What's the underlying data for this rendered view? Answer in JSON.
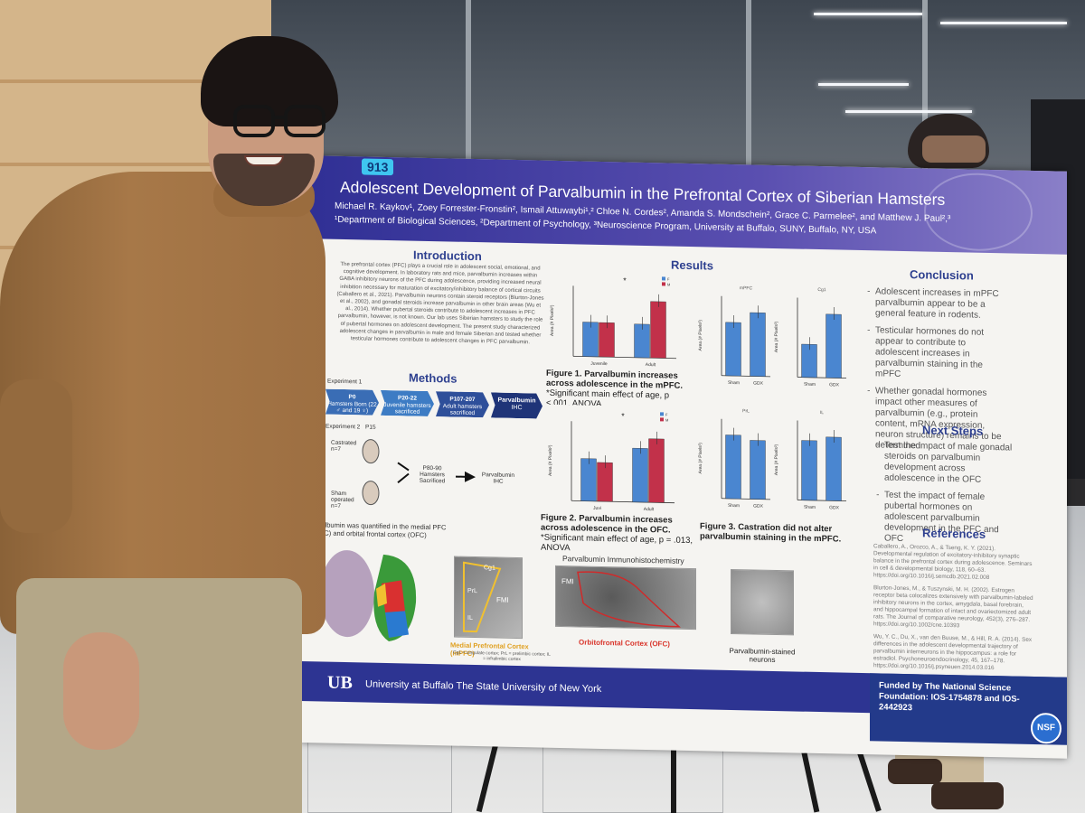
{
  "poster": {
    "number": "913",
    "title": "Adolescent Development of Parvalbumin in the Prefrontal Cortex of Siberian Hamsters",
    "authors": "Michael R. Kaykov¹, Zoey Forrester-Fronstin², Ismail Attuwaybi¹,² Chloe N. Cordes², Amanda S. Mondschein², Grace C. Parmelee², and Matthew J. Paul²,³",
    "affiliations": "¹Department of Biological Sciences, ²Department of Psychology, ³Neuroscience Program, University at Buffalo, SUNY, Buffalo, NY, USA",
    "introduction": {
      "heading": "Introduction",
      "text": "The prefrontal cortex (PFC) plays a crucial role in adolescent social, emotional, and cognitive development. In laboratory rats and mice, parvalbumin increases within GABA inhibitory neurons of the PFC during adolescence, providing increased neural inhibition necessary for maturation of excitatory/inhibitory balance of cortical circuits (Caballero et al., 2021). Parvalbumin neurons contain steroid receptors (Blurton-Jones et al., 2002), and gonadal steroids increase parvalbumin in other brain areas (Wu et al., 2014). Whether pubertal steroids contribute to adolescent increases in PFC parvalbumin, however, is not known. Our lab uses Siberian hamsters to study the role of pubertal hormones on adolescent development. The present study characterized adolescent changes in parvalbumin in male and female Siberian and tested whether testicular hormones contribute to adolescent changes in PFC parvalbumin."
    },
    "methods": {
      "heading": "Methods",
      "experiment1": "Experiment 1",
      "steps": [
        {
          "title": "P0",
          "text": "Hamsters Born (22 ♂ and 19 ♀)"
        },
        {
          "title": "P20-22",
          "text": "Juvenile hamsters sacrificed"
        },
        {
          "title": "P107-207",
          "text": "Adult hamsters sacrificed"
        },
        {
          "title": "Parvalbumin",
          "text": "IHC"
        }
      ],
      "experiment2": "Experiment 2",
      "p15": "P15",
      "castrated": "Castrated n=7",
      "sham": "Sham operated n=7",
      "p80": "P80-90 Hamsters Sacrificed",
      "ihc": "Parvalbumin IHC",
      "quantified": "Parvalbumin was quantified in the medial PFC (mPFC) and orbital frontal cortex (OFC)",
      "mpfc_label": "Medial Prefrontal Cortex (mPFC)",
      "mpfc_note": "Cg1 = cingulate cortex; PrL = prelimbic cortex; IL = infralimbic cortex",
      "cg1": "Cg1",
      "prl": "PrL",
      "il": "IL",
      "fmi": "FMI"
    },
    "results": {
      "heading": "Results",
      "fig1_caption_bold": "Figure 1. Parvalbumin increases across adolescence in the mPFC.",
      "fig1_caption": "*Significant main effect of age, p <.001, ANOVA",
      "fig2_caption_bold": "Figure 2. Parvalbumin increases across adolescence in the OFC.",
      "fig2_caption": "*Significant main effect of age, p = .013, ANOVA",
      "fig3_caption": "Figure 3. Castration did not alter parvalbumin staining in the mPFC.",
      "ihc_title": "Parvalbumin Immunohistochemistry",
      "ofc_label": "Orbitofrontal Cortex (OFC)",
      "neurons_label": "Parvalbumin-stained neurons",
      "fmi": "FMI"
    },
    "conclusion": {
      "heading": "Conclusion",
      "items": [
        "Adolescent increases in mPFC parvalbumin appear to be a general feature in rodents.",
        "Testicular hormones do not appear to contribute to adolescent increases in parvalbumin staining in the mPFC",
        "Whether gonadal hormones impact other measures of parvalbumin (e.g., protein content, mRNA expression, neuron structure) remains to be determined"
      ]
    },
    "next_steps": {
      "heading": "Next Steps",
      "items": [
        "Test the impact of male gonadal steroids on parvalbumin development across adolescence in the OFC",
        "Test the impact of female pubertal hormones on adolescent parvalbumin development in the PFC and OFC"
      ]
    },
    "references": {
      "heading": "References",
      "items": [
        "Caballero, A., Orozco, A., & Tseng, K. Y. (2021). Developmental regulation of excitatory-inhibitory synaptic balance in the prefrontal cortex during adolescence. Seminars in cell & developmental biology, 118, 60–63. https://doi.org/10.1016/j.semcdb.2021.02.008",
        "Blurton-Jones, M., & Tuszynski, M. H. (2002). Estrogen receptor beta colocalizes extensively with parvalbumin-labeled inhibitory neurons in the cortex, amygdala, basal forebrain, and hippocampal formation of intact and ovariectomized adult rats. The Journal of comparative neurology, 452(3), 276–287. https://doi.org/10.1002/cne.10393",
        "Wu, Y. C., Du, X., van den Buuse, M., & Hill, R. A. (2014). Sex differences in the adolescent developmental trajectory of parvalbumin interneurons in the hippocampus: a role for estradiol. Psychoneuroendocrinology, 45, 167–178. https://doi.org/10.1016/j.psyneuen.2014.03.016"
      ]
    },
    "footer": {
      "ub_logo": "UB",
      "ub_name": "University at Buffalo The State University of New York",
      "funded": "Funded by The National Science Foundation: IOS-1754878 and IOS-2442923",
      "nsf": "NSF"
    }
  },
  "chart_data": [
    {
      "type": "bar",
      "categories": [
        "Juvenile",
        "Adult"
      ],
      "series": [
        {
          "name": "F",
          "values": [
            1800000,
            1750000
          ],
          "color": "#4a86d0"
        },
        {
          "name": "M",
          "values": [
            1790000,
            2950000
          ],
          "color": "#c2314a"
        }
      ],
      "annotation": "*",
      "ylabel": "Area (# Pixels²)"
    },
    {
      "type": "bar",
      "categories": [
        "Sham",
        "GDX"
      ],
      "series": [
        {
          "values": [
            52000,
            62000
          ],
          "color": "#4a86d0"
        }
      ],
      "title": "mPFC",
      "ylabel": "Area (# Pixels²)"
    },
    {
      "type": "bar",
      "categories": [
        "Sham",
        "GDX"
      ],
      "series": [
        {
          "values": [
            13000,
            25000
          ],
          "color": "#4a86d0"
        }
      ],
      "title": "Cg1",
      "ylabel": "Area (# Pixels²)"
    },
    {
      "type": "bar",
      "categories": [
        "Juvi",
        "Adult"
      ],
      "series": [
        {
          "name": "F",
          "values": [
            1300000,
            1650000
          ],
          "color": "#4a86d0"
        },
        {
          "name": "M",
          "values": [
            1190000,
            1950000
          ],
          "color": "#c2314a"
        }
      ],
      "annotation": "*",
      "ylabel": "Area (# Pixels²)"
    },
    {
      "type": "bar",
      "categories": [
        "Sham",
        "GDX"
      ],
      "series": [
        {
          "values": [
            39000,
            36000
          ],
          "color": "#4a86d0"
        }
      ],
      "title": "PrL",
      "ylabel": "Area (# Pixels²)"
    },
    {
      "type": "bar",
      "categories": [
        "Sham",
        "GDX"
      ],
      "series": [
        {
          "values": [
            23000,
            24500
          ],
          "color": "#4a86d0"
        }
      ],
      "title": "IL",
      "ylabel": "Area (# Pixels²)"
    }
  ],
  "colors": {
    "poster_header": "#2f2f94",
    "heading_blue": "#2d3f8f",
    "bar_female": "#4a86d0",
    "bar_male": "#c2314a",
    "footer": "#2d3492"
  }
}
